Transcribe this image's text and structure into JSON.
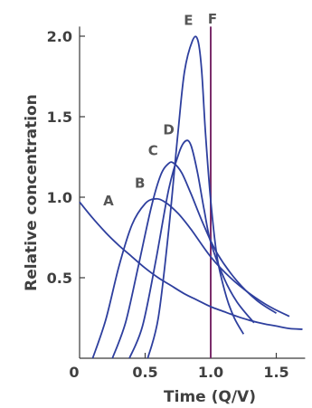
{
  "chart_data": {
    "type": "line",
    "title": "",
    "xlabel": "Time (Q/V)",
    "ylabel": "Relative concentration",
    "xlim": [
      0,
      1.75
    ],
    "ylim": [
      0,
      2.1
    ],
    "x_ticks": [
      {
        "value": 0,
        "label": "0"
      },
      {
        "value": 0.5,
        "label": "0.5"
      },
      {
        "value": 1.0,
        "label": "1.0"
      },
      {
        "value": 1.5,
        "label": "1.5"
      }
    ],
    "y_ticks": [
      {
        "value": 0.5,
        "label": "0.5"
      },
      {
        "value": 1.0,
        "label": "1.0"
      },
      {
        "value": 1.5,
        "label": "1.5"
      },
      {
        "value": 2.0,
        "label": "2.0"
      }
    ],
    "grid": false,
    "legend": "none",
    "line_color": "#2e3f9e",
    "marker_color": "#7b2d6b",
    "vertical_marker": {
      "name": "F",
      "x": 1.0
    },
    "series": [
      {
        "name": "A",
        "label_at": [
          0.22,
          0.95
        ],
        "points": [
          [
            0,
            0.97
          ],
          [
            0.1,
            0.87
          ],
          [
            0.2,
            0.78
          ],
          [
            0.3,
            0.7
          ],
          [
            0.4,
            0.63
          ],
          [
            0.5,
            0.56
          ],
          [
            0.6,
            0.5
          ],
          [
            0.7,
            0.45
          ],
          [
            0.8,
            0.4
          ],
          [
            0.9,
            0.36
          ],
          [
            1.0,
            0.32
          ],
          [
            1.1,
            0.29
          ],
          [
            1.2,
            0.26
          ],
          [
            1.3,
            0.235
          ],
          [
            1.4,
            0.215
          ],
          [
            1.5,
            0.2
          ],
          [
            1.6,
            0.185
          ],
          [
            1.7,
            0.18
          ]
        ]
      },
      {
        "name": "B",
        "label_at": [
          0.46,
          1.06
        ],
        "points": [
          [
            0.1,
            0
          ],
          [
            0.2,
            0.24
          ],
          [
            0.3,
            0.57
          ],
          [
            0.4,
            0.83
          ],
          [
            0.5,
            0.96
          ],
          [
            0.58,
            0.99
          ],
          [
            0.65,
            0.97
          ],
          [
            0.75,
            0.9
          ],
          [
            0.85,
            0.8
          ],
          [
            1.0,
            0.63
          ],
          [
            1.15,
            0.5
          ],
          [
            1.3,
            0.4
          ],
          [
            1.45,
            0.32
          ],
          [
            1.6,
            0.26
          ]
        ]
      },
      {
        "name": "C",
        "label_at": [
          0.56,
          1.26
        ],
        "points": [
          [
            0.25,
            0
          ],
          [
            0.35,
            0.22
          ],
          [
            0.45,
            0.58
          ],
          [
            0.55,
            0.95
          ],
          [
            0.62,
            1.14
          ],
          [
            0.68,
            1.21
          ],
          [
            0.72,
            1.21
          ],
          [
            0.78,
            1.15
          ],
          [
            0.85,
            1.02
          ],
          [
            0.95,
            0.82
          ],
          [
            1.05,
            0.65
          ],
          [
            1.2,
            0.48
          ],
          [
            1.35,
            0.36
          ],
          [
            1.5,
            0.28
          ]
        ]
      },
      {
        "name": "D",
        "label_at": [
          0.68,
          1.39
        ],
        "points": [
          [
            0.38,
            0
          ],
          [
            0.48,
            0.2
          ],
          [
            0.58,
            0.6
          ],
          [
            0.68,
            1.05
          ],
          [
            0.76,
            1.28
          ],
          [
            0.81,
            1.35
          ],
          [
            0.85,
            1.32
          ],
          [
            0.9,
            1.15
          ],
          [
            0.95,
            0.92
          ],
          [
            1.0,
            0.72
          ],
          [
            1.1,
            0.5
          ],
          [
            1.2,
            0.35
          ],
          [
            1.33,
            0.22
          ]
        ]
      },
      {
        "name": "E",
        "label_at": [
          0.83,
          2.07
        ],
        "points": [
          [
            0.52,
            0
          ],
          [
            0.6,
            0.25
          ],
          [
            0.68,
            0.8
          ],
          [
            0.75,
            1.4
          ],
          [
            0.8,
            1.78
          ],
          [
            0.86,
            1.97
          ],
          [
            0.9,
            1.98
          ],
          [
            0.93,
            1.8
          ],
          [
            0.96,
            1.4
          ],
          [
            1.0,
            0.98
          ],
          [
            1.05,
            0.62
          ],
          [
            1.12,
            0.38
          ],
          [
            1.18,
            0.25
          ],
          [
            1.25,
            0.15
          ]
        ]
      }
    ]
  }
}
